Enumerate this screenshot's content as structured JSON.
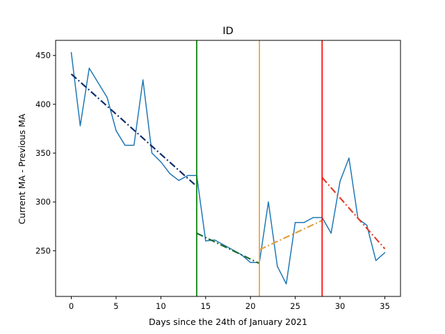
{
  "chart_data": {
    "type": "line",
    "title": "ID",
    "xlabel": "Days since the 24th of January 2021",
    "ylabel": "Current MA - Previous MA",
    "xlim": [
      -1.75,
      36.75
    ],
    "ylim": [
      203.2,
      465.5
    ],
    "xticks": [
      0,
      5,
      10,
      15,
      20,
      25,
      30,
      35
    ],
    "yticks": [
      250,
      300,
      350,
      400,
      450
    ],
    "grid": false,
    "series": [
      {
        "name": "data",
        "color": "#1f77b4",
        "style": "solid",
        "x": [
          0,
          1,
          2,
          3,
          4,
          5,
          6,
          7,
          8,
          9,
          10,
          11,
          12,
          13,
          14,
          15,
          16,
          17,
          18,
          19,
          20,
          21,
          22,
          23,
          24,
          25,
          26,
          27,
          28,
          29,
          30,
          31,
          32,
          33,
          34,
          35
        ],
        "y": [
          453,
          378,
          437,
          422,
          407,
          373,
          358,
          358,
          425,
          350,
          341,
          329,
          322,
          327,
          327,
          260,
          261,
          256,
          251,
          246,
          238,
          238,
          300,
          234,
          216,
          279,
          279,
          284,
          284,
          268,
          321,
          345,
          283,
          276,
          240,
          248
        ]
      }
    ],
    "trend_lines": [
      {
        "name": "trend-1",
        "color": "#0d2c6c",
        "style": "dashdot",
        "x": [
          0,
          14
        ],
        "y": [
          431,
          316
        ]
      },
      {
        "name": "trend-2",
        "color": "#1a6b30",
        "style": "dashdot",
        "x": [
          14,
          21
        ],
        "y": [
          268,
          237
        ]
      },
      {
        "name": "trend-3",
        "color": "#e0a040",
        "style": "dashdot",
        "x": [
          21,
          28
        ],
        "y": [
          251,
          281
        ]
      },
      {
        "name": "trend-4",
        "color": "#e0402a",
        "style": "dashdot",
        "x": [
          28,
          35
        ],
        "y": [
          325,
          252
        ]
      }
    ],
    "vlines": [
      {
        "name": "vline-green",
        "x": 14,
        "color": "#008000"
      },
      {
        "name": "vline-orange",
        "x": 21,
        "color": "#e8a040"
      },
      {
        "name": "vline-red",
        "x": 28,
        "color": "#ff0000"
      }
    ]
  }
}
